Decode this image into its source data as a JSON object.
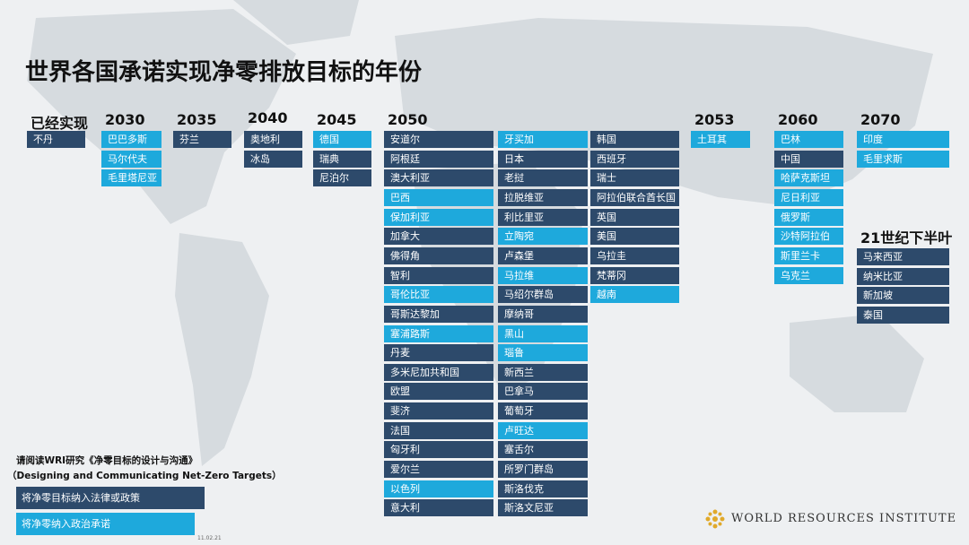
{
  "title": "世界各国承诺实现净零排放目标的年份",
  "groups": [
    {
      "heading": "已经实现",
      "countries": [
        {
          "name": "不丹",
          "color": "#2d4a6b"
        }
      ]
    },
    {
      "heading": "2030",
      "countries": [
        {
          "name": "巴巴多斯",
          "color": "#1ea9dc"
        },
        {
          "name": "马尔代夫",
          "color": "#1ea9dc"
        },
        {
          "name": "毛里塔尼亚",
          "color": "#1ea9dc"
        }
      ]
    },
    {
      "heading": "2035",
      "countries": [
        {
          "name": "芬兰",
          "color": "#2d4a6b"
        }
      ]
    },
    {
      "heading": "2040",
      "countries": [
        {
          "name": "奥地利",
          "color": "#2d4a6b"
        },
        {
          "name": "冰岛",
          "color": "#2d4a6b"
        }
      ]
    },
    {
      "heading": "2045",
      "countries": [
        {
          "name": "德国",
          "color": "#1ea9dc"
        },
        {
          "name": "瑞典",
          "color": "#2d4a6b"
        },
        {
          "name": "尼泊尔",
          "color": "#2d4a6b"
        }
      ]
    },
    {
      "heading": "2050",
      "countries": [
        {
          "name": "安道尔",
          "color": "#2d4a6b"
        },
        {
          "name": "阿根廷",
          "color": "#2d4a6b"
        },
        {
          "name": "澳大利亚",
          "color": "#2d4a6b"
        },
        {
          "name": "巴西",
          "color": "#1ea9dc"
        },
        {
          "name": "保加利亚",
          "color": "#1ea9dc"
        },
        {
          "name": "加拿大",
          "color": "#2d4a6b"
        },
        {
          "name": "佛得角",
          "color": "#2d4a6b"
        },
        {
          "name": "智利",
          "color": "#2d4a6b"
        },
        {
          "name": "哥伦比亚",
          "color": "#1ea9dc"
        },
        {
          "name": "哥斯达黎加",
          "color": "#2d4a6b"
        },
        {
          "name": "塞浦路斯",
          "color": "#1ea9dc"
        },
        {
          "name": "丹麦",
          "color": "#2d4a6b"
        },
        {
          "name": "多米尼加共和国",
          "color": "#2d4a6b"
        },
        {
          "name": "欧盟",
          "color": "#2d4a6b"
        },
        {
          "name": "斐济",
          "color": "#2d4a6b"
        },
        {
          "name": "法国",
          "color": "#2d4a6b"
        },
        {
          "name": "匈牙利",
          "color": "#2d4a6b"
        },
        {
          "name": "爱尔兰",
          "color": "#2d4a6b"
        },
        {
          "name": "以色列",
          "color": "#1ea9dc"
        },
        {
          "name": "意大利",
          "color": "#2d4a6b"
        },
        {
          "name": "牙买加",
          "color": "#1ea9dc"
        },
        {
          "name": "日本",
          "color": "#2d4a6b"
        },
        {
          "name": "老挝",
          "color": "#2d4a6b"
        },
        {
          "name": "拉脱维亚",
          "color": "#2d4a6b"
        },
        {
          "name": "利比里亚",
          "color": "#2d4a6b"
        },
        {
          "name": "立陶宛",
          "color": "#1ea9dc"
        },
        {
          "name": "卢森堡",
          "color": "#2d4a6b"
        },
        {
          "name": "马拉维",
          "color": "#1ea9dc"
        },
        {
          "name": "马绍尔群岛",
          "color": "#2d4a6b"
        },
        {
          "name": "摩纳哥",
          "color": "#2d4a6b"
        },
        {
          "name": "黑山",
          "color": "#1ea9dc"
        },
        {
          "name": "瑙鲁",
          "color": "#1ea9dc"
        },
        {
          "name": "新西兰",
          "color": "#2d4a6b"
        },
        {
          "name": "巴拿马",
          "color": "#2d4a6b"
        },
        {
          "name": "葡萄牙",
          "color": "#2d4a6b"
        },
        {
          "name": "卢旺达",
          "color": "#1ea9dc"
        },
        {
          "name": "塞舌尔",
          "color": "#2d4a6b"
        },
        {
          "name": "所罗门群岛",
          "color": "#2d4a6b"
        },
        {
          "name": "斯洛伐克",
          "color": "#2d4a6b"
        },
        {
          "name": "斯洛文尼亚",
          "color": "#2d4a6b"
        },
        {
          "name": "韩国",
          "color": "#2d4a6b"
        },
        {
          "name": "西班牙",
          "color": "#2d4a6b"
        },
        {
          "name": "瑞士",
          "color": "#2d4a6b"
        },
        {
          "name": "阿拉伯联合酋长国",
          "color": "#2d4a6b"
        },
        {
          "name": "英国",
          "color": "#2d4a6b"
        },
        {
          "name": "美国",
          "color": "#2d4a6b"
        },
        {
          "name": "乌拉圭",
          "color": "#2d4a6b"
        },
        {
          "name": "梵蒂冈",
          "color": "#2d4a6b"
        },
        {
          "name": "越南",
          "color": "#1ea9dc"
        }
      ]
    },
    {
      "heading": "2053",
      "countries": [
        {
          "name": "土耳其",
          "color": "#1ea9dc"
        }
      ]
    },
    {
      "heading": "2060",
      "countries": [
        {
          "name": "巴林",
          "color": "#1ea9dc"
        },
        {
          "name": "中国",
          "color": "#2d4a6b"
        },
        {
          "name": "哈萨克斯坦",
          "color": "#1ea9dc"
        },
        {
          "name": "尼日利亚",
          "color": "#1ea9dc"
        },
        {
          "name": "俄罗斯",
          "color": "#1ea9dc"
        },
        {
          "name": "沙特阿拉伯",
          "color": "#1ea9dc"
        },
        {
          "name": "斯里兰卡",
          "color": "#1ea9dc"
        },
        {
          "name": "乌克兰",
          "color": "#1ea9dc"
        }
      ]
    },
    {
      "heading": "2070",
      "countries": [
        {
          "name": "印度",
          "color": "#1ea9dc"
        },
        {
          "name": "毛里求斯",
          "color": "#1ea9dc"
        }
      ]
    },
    {
      "heading": "21世纪下半叶",
      "countries": [
        {
          "name": "马来西亚",
          "color": "#2d4a6b"
        },
        {
          "name": "纳米比亚",
          "color": "#2d4a6b"
        },
        {
          "name": "新加坡",
          "color": "#2d4a6b"
        },
        {
          "name": "泰国",
          "color": "#2d4a6b"
        }
      ]
    }
  ],
  "note": "请阅读WRI研究《净零目标的设计与沟通》",
  "note_en": "（Designing and Communicating Net-Zero Targets）",
  "legend": [
    {
      "label": "将净零目标纳入法律或政策",
      "color": "#2d4a6b"
    },
    {
      "label": "将净零纳入政治承诺",
      "color": "#1ea9dc"
    }
  ],
  "date": "11.02.21",
  "logo": "WORLD RESOURCES INSTITUTE"
}
